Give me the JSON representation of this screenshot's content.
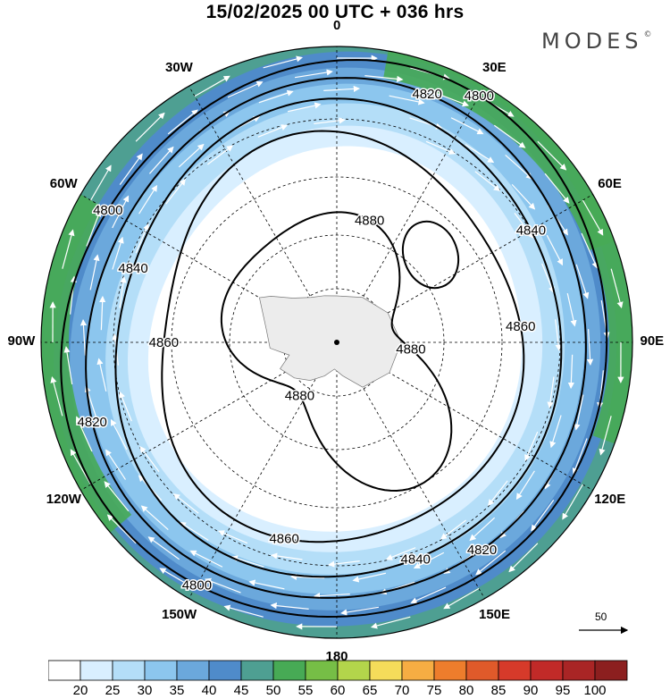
{
  "title": "15/02/2025  00 UTC  + 036 hrs",
  "brand": {
    "name": "MODES",
    "mark": "©"
  },
  "longitude_labels": [
    "0",
    "30E",
    "60E",
    "90E",
    "120E",
    "150E",
    "180",
    "150W",
    "120W",
    "90W",
    "60W",
    "30W"
  ],
  "contour_labels": [
    "4800",
    "4820",
    "4840",
    "4860",
    "4880"
  ],
  "colorbar": {
    "ticks": [
      "20",
      "25",
      "30",
      "35",
      "40",
      "45",
      "50",
      "55",
      "60",
      "65",
      "70",
      "75",
      "80",
      "85",
      "90",
      "95",
      "100"
    ],
    "colors": [
      "#ffffff",
      "#d9efff",
      "#b4def8",
      "#8cc6ee",
      "#6ba8dc",
      "#4f8bca",
      "#4e9f92",
      "#47aa55",
      "#76be46",
      "#b3d54b",
      "#f5dc5a",
      "#f6ad43",
      "#ee7d2c",
      "#e05a2a",
      "#d63a2a",
      "#c12a28",
      "#a92525",
      "#8c1f1f"
    ]
  },
  "reference_vector": {
    "label": "50"
  },
  "icons": {
    "wind_arrow": "arrow-icon",
    "pole": "pole-dot"
  }
}
